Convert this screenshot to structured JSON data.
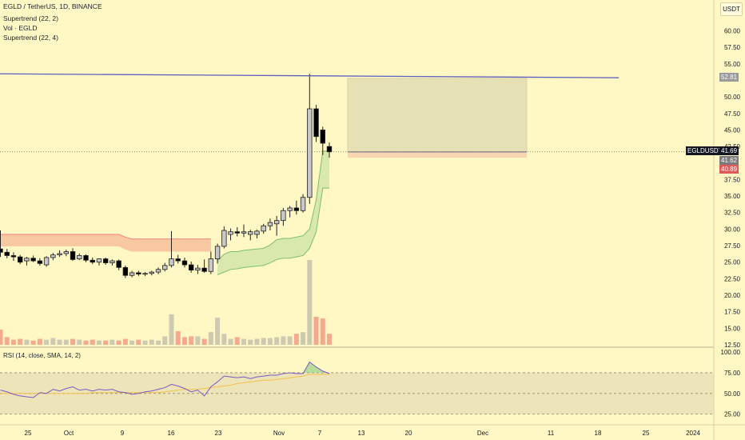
{
  "header": {
    "symbol_line": "EGLD / TetherUS, 1D, BINANCE",
    "indicators": [
      "Supertrend (22, 2)",
      "Vol · EGLD",
      "Supertrend (22, 4)"
    ]
  },
  "unit_badge": "USDT",
  "price_tags": {
    "target_label": "52.81",
    "symbol_label": "EGLDUSDT",
    "last_price": "41.69",
    "tag_two": "41.62",
    "tag_three": "40.89"
  },
  "rsi": {
    "label": "RSI (14, close, SMA, 14, 2)",
    "ticks": [
      "100.00",
      "75.00",
      "50.00",
      "25.00"
    ]
  },
  "colors": {
    "background": "#fff8c4",
    "up_candle": "#c8c8c8",
    "down_candle": "#000000",
    "supertrend_up": "#7dbf6a",
    "supertrend_down": "#f08080",
    "trendline": "#5b5fbf",
    "rsi_line": "#7e57c2"
  },
  "chart_data": {
    "type": "candlestick",
    "x_tick_labels": [
      "25",
      "Oct",
      "9",
      "16",
      "23",
      "Nov",
      "7",
      "13",
      "20",
      "Dec",
      "11",
      "18",
      "25",
      "2024"
    ],
    "y_tick_labels": [
      "60.00",
      "57.50",
      "55.00",
      "50.00",
      "47.50",
      "45.00",
      "42.50",
      "37.50",
      "35.00",
      "32.50",
      "30.00",
      "27.50",
      "25.00",
      "22.50",
      "20.00",
      "17.50",
      "15.00",
      "12.50"
    ],
    "ylim": [
      12.5,
      62
    ],
    "candles": [
      {
        "o": 27,
        "h": 29.8,
        "l": 25.8,
        "c": 26.5
      },
      {
        "o": 26.5,
        "h": 27,
        "l": 25.6,
        "c": 26
      },
      {
        "o": 26,
        "h": 26.5,
        "l": 25.2,
        "c": 25.8
      },
      {
        "o": 25.8,
        "h": 26.1,
        "l": 24.7,
        "c": 25
      },
      {
        "o": 25.2,
        "h": 25.8,
        "l": 24.5,
        "c": 25.6
      },
      {
        "o": 25.6,
        "h": 26,
        "l": 25,
        "c": 25.2
      },
      {
        "o": 25.2,
        "h": 25.6,
        "l": 24.5,
        "c": 24.8
      },
      {
        "o": 24.6,
        "h": 25.9,
        "l": 24.3,
        "c": 25.7
      },
      {
        "o": 25.7,
        "h": 26.4,
        "l": 25.3,
        "c": 26.1
      },
      {
        "o": 26.1,
        "h": 26.8,
        "l": 25.8,
        "c": 26.3
      },
      {
        "o": 26.3,
        "h": 26.9,
        "l": 25.9,
        "c": 26.6
      },
      {
        "o": 26.6,
        "h": 27.1,
        "l": 25.2,
        "c": 25.4
      },
      {
        "o": 25.5,
        "h": 26.3,
        "l": 25.3,
        "c": 26
      },
      {
        "o": 26,
        "h": 26.2,
        "l": 25,
        "c": 25.3
      },
      {
        "o": 25.3,
        "h": 25.7,
        "l": 24.7,
        "c": 25
      },
      {
        "o": 25,
        "h": 25.6,
        "l": 24.5,
        "c": 25.5
      },
      {
        "o": 25.5,
        "h": 25.7,
        "l": 24.6,
        "c": 24.9
      },
      {
        "o": 24.9,
        "h": 25.4,
        "l": 24.5,
        "c": 25.2
      },
      {
        "o": 25.2,
        "h": 25.4,
        "l": 23.8,
        "c": 24.2
      },
      {
        "o": 24.2,
        "h": 24.5,
        "l": 22.6,
        "c": 23
      },
      {
        "o": 23,
        "h": 23.7,
        "l": 22.7,
        "c": 23.4
      },
      {
        "o": 23.4,
        "h": 23.7,
        "l": 22.9,
        "c": 23.2
      },
      {
        "o": 23.2,
        "h": 23.5,
        "l": 22.9,
        "c": 23.3
      },
      {
        "o": 23.3,
        "h": 23.7,
        "l": 23,
        "c": 23.5
      },
      {
        "o": 23.5,
        "h": 24.2,
        "l": 23.2,
        "c": 23.9
      },
      {
        "o": 23.9,
        "h": 24.9,
        "l": 23.6,
        "c": 24.5
      },
      {
        "o": 24.5,
        "h": 29.7,
        "l": 24.2,
        "c": 25.5
      },
      {
        "o": 25.5,
        "h": 26.1,
        "l": 24.8,
        "c": 25.2
      },
      {
        "o": 25.2,
        "h": 25.7,
        "l": 24.2,
        "c": 24.6
      },
      {
        "o": 24.6,
        "h": 25.1,
        "l": 23.4,
        "c": 23.8
      },
      {
        "o": 23.8,
        "h": 24.6,
        "l": 23.2,
        "c": 24.1
      },
      {
        "o": 24.1,
        "h": 25.4,
        "l": 23.4,
        "c": 23.6
      },
      {
        "o": 23.6,
        "h": 26.6,
        "l": 23.2,
        "c": 25.5
      },
      {
        "o": 25.5,
        "h": 27.8,
        "l": 24.8,
        "c": 27.4
      },
      {
        "o": 27.4,
        "h": 30.4,
        "l": 27.1,
        "c": 29.8
      },
      {
        "o": 29.2,
        "h": 30.1,
        "l": 28.3,
        "c": 29.6
      },
      {
        "o": 29.6,
        "h": 30.3,
        "l": 28.9,
        "c": 29.4
      },
      {
        "o": 29.4,
        "h": 30.7,
        "l": 28.8,
        "c": 29.6
      },
      {
        "o": 29.2,
        "h": 29.9,
        "l": 28.3,
        "c": 29.6
      },
      {
        "o": 29.2,
        "h": 29.9,
        "l": 28.6,
        "c": 29.7
      },
      {
        "o": 29.7,
        "h": 30.8,
        "l": 29.3,
        "c": 30.5
      },
      {
        "o": 30.5,
        "h": 31.6,
        "l": 29.8,
        "c": 31
      },
      {
        "o": 30.8,
        "h": 32,
        "l": 29,
        "c": 31.3
      },
      {
        "o": 31.3,
        "h": 33.2,
        "l": 30.5,
        "c": 32.8
      },
      {
        "o": 32.8,
        "h": 33.5,
        "l": 31.8,
        "c": 33.2
      },
      {
        "o": 33.2,
        "h": 34.3,
        "l": 32.2,
        "c": 32.8
      },
      {
        "o": 32.8,
        "h": 35.3,
        "l": 32.5,
        "c": 34.8
      },
      {
        "o": 34.8,
        "h": 53.5,
        "l": 33.8,
        "c": 48.2
      },
      {
        "o": 48.2,
        "h": 48.8,
        "l": 43.2,
        "c": 44
      },
      {
        "o": 45,
        "h": 45.5,
        "l": 41.2,
        "c": 43
      },
      {
        "o": 42.5,
        "h": 43.1,
        "l": 40.8,
        "c": 41.7
      }
    ],
    "volume_relative": [
      0.18,
      0.09,
      0.06,
      0.07,
      0.06,
      0.05,
      0.07,
      0.06,
      0.08,
      0.06,
      0.06,
      0.07,
      0.06,
      0.05,
      0.06,
      0.05,
      0.05,
      0.06,
      0.05,
      0.07,
      0.05,
      0.06,
      0.05,
      0.06,
      0.05,
      0.1,
      0.36,
      0.16,
      0.09,
      0.1,
      0.1,
      0.07,
      0.15,
      0.32,
      0.13,
      0.07,
      0.09,
      0.07,
      0.06,
      0.07,
      0.08,
      0.08,
      0.09,
      0.1,
      0.1,
      0.13,
      0.15,
      1.0,
      0.33,
      0.31,
      0.13
    ],
    "supertrend_red": [
      27.4,
      27.4,
      27.4,
      27.4,
      27.4,
      27.4,
      27.4,
      27.4,
      27.4,
      27.4,
      27.4,
      27.4,
      27.4,
      27.4,
      27.4,
      27.4,
      27.4,
      27.4,
      27.4,
      26.9,
      26.6,
      26.6,
      26.6,
      26.6,
      26.6,
      26.6,
      26.6,
      26.6,
      26.6,
      26.6,
      26.6,
      26.6,
      26.6
    ],
    "supertrend_red_outer": [
      29.2,
      29.2,
      29.2,
      29.2,
      29.2,
      29.2,
      29.2,
      29.2,
      29.2,
      29.2,
      29.2,
      29.2,
      29.2,
      29.2,
      29.2,
      29.2,
      29.2,
      29.2,
      29.2,
      28.8,
      28.5,
      28.5,
      28.5,
      28.5,
      28.5,
      28.5,
      28.5,
      28.5,
      28.5,
      28.5,
      28.5,
      28.5,
      28.5
    ],
    "supertrend_green_start": 33,
    "supertrend_green": [
      25.2,
      26.2,
      26.6,
      26.6,
      26.8,
      26.9,
      27,
      27.1,
      27.6,
      28.4,
      28.6,
      28.6,
      28.8,
      29,
      30,
      34.4,
      41.8,
      41.8
    ],
    "supertrend_green_outer": [
      23.1,
      23.5,
      23.9,
      24,
      24.2,
      24.3,
      24.4,
      24.5,
      24.9,
      25.4,
      25.6,
      25.6,
      25.8,
      26,
      27.1,
      29.6,
      36.2,
      36.2
    ],
    "trendline": {
      "from": {
        "price": 53.5,
        "index": -1
      },
      "to": {
        "price": 52.9,
        "index": 94
      }
    },
    "target_zone": {
      "top": 52.81,
      "bottom": 41.62,
      "index_from": 54,
      "index_to": 80
    },
    "rsi_values": [
      54,
      52,
      49,
      47,
      46,
      45,
      51,
      50,
      55,
      53,
      56,
      58,
      54,
      55,
      53,
      55,
      54,
      55,
      52,
      51,
      49,
      50,
      52,
      53,
      55,
      57,
      61,
      59,
      56,
      52,
      54,
      47,
      58,
      64,
      71,
      70,
      69,
      70,
      68,
      70,
      71,
      72,
      72,
      74,
      75,
      74,
      74,
      88,
      82,
      77,
      74
    ],
    "rsi_sma": [
      50,
      50,
      50,
      50,
      50,
      50,
      50,
      50,
      50,
      50,
      50,
      50,
      50,
      50,
      51,
      51,
      51,
      51,
      51,
      51,
      51,
      51,
      51,
      51,
      51,
      52,
      53,
      54,
      55,
      55,
      55,
      56,
      57,
      58,
      59,
      60,
      62,
      63,
      64,
      65,
      66,
      66,
      67,
      68,
      69,
      70,
      71,
      73,
      73,
      73,
      73
    ],
    "rsi_ylim": [
      15,
      103
    ]
  }
}
